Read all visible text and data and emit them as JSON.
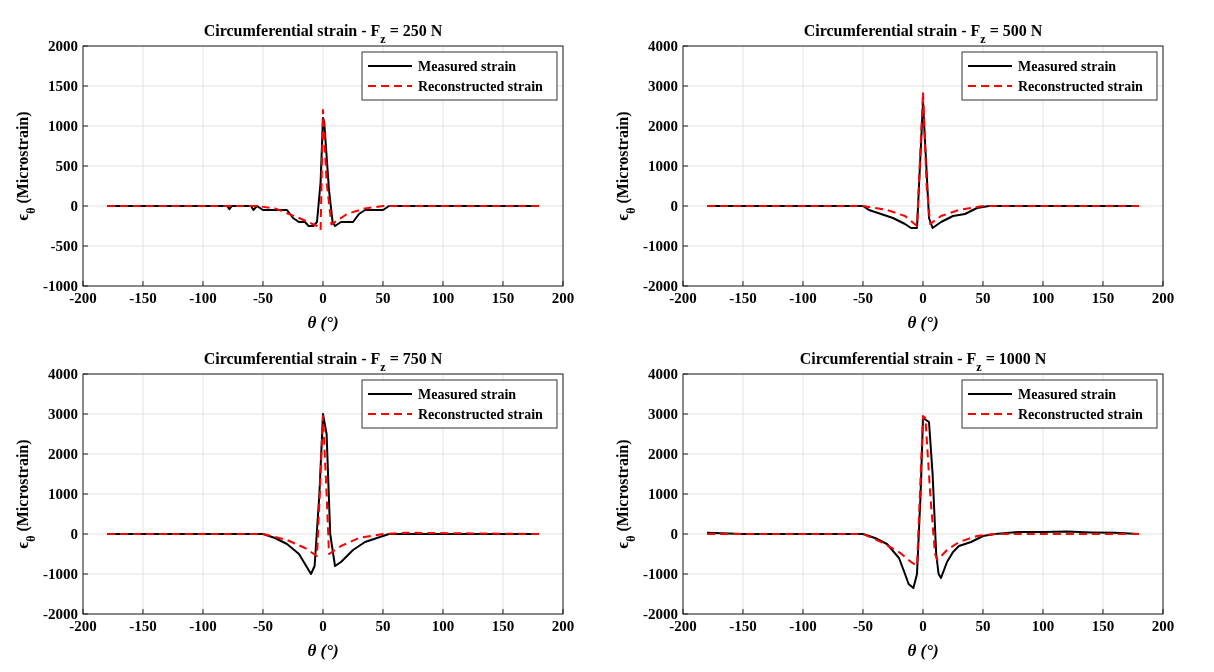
{
  "chart_data": [
    {
      "type": "line",
      "title": "Circumferential strain - F$_{z}$ = 250 N",
      "xlabel": "θ (°)",
      "ylabel": "ϵ$_{θ}$ (Microstrain)",
      "xlim": [
        -200,
        200
      ],
      "xticks": [
        -200,
        -150,
        -100,
        -50,
        0,
        50,
        100,
        150,
        200
      ],
      "ylim": [
        -1000,
        2000
      ],
      "yticks": [
        -1000,
        -500,
        0,
        500,
        1000,
        1500,
        2000
      ],
      "grid": true,
      "legend": "top right",
      "series": [
        {
          "name": "Measured strain",
          "color": "#000000",
          "line_style": "solid",
          "x": [
            -180,
            -80,
            -78,
            -76,
            -60,
            -58,
            -55,
            -50,
            -30,
            -25,
            -20,
            -15,
            -12,
            -8,
            -5,
            -2,
            0,
            1,
            5,
            8,
            10,
            15,
            25,
            30,
            35,
            50,
            55,
            180
          ],
          "values": [
            0,
            0,
            -40,
            0,
            0,
            -50,
            0,
            -50,
            -50,
            -150,
            -200,
            -200,
            -250,
            -250,
            -200,
            300,
            1100,
            1050,
            200,
            -200,
            -250,
            -200,
            -200,
            -100,
            -50,
            -50,
            0,
            0
          ]
        },
        {
          "name": "Reconstructed strain",
          "color": "#ff0000",
          "line_style": "dashed",
          "x": [
            -180,
            -55,
            -40,
            -20,
            -5,
            -2,
            0,
            3,
            7,
            20,
            35,
            50,
            180
          ],
          "values": [
            0,
            0,
            -30,
            -150,
            -250,
            -300,
            1200,
            300,
            -230,
            -100,
            -30,
            0,
            0
          ]
        }
      ]
    },
    {
      "type": "line",
      "title": "Circumferential strain - F$_{z}$ = 500 N",
      "xlabel": "θ (°)",
      "ylabel": "ϵ$_{θ}$ (Microstrain)",
      "xlim": [
        -200,
        200
      ],
      "xticks": [
        -200,
        -150,
        -100,
        -50,
        0,
        50,
        100,
        150,
        200
      ],
      "ylim": [
        -2000,
        4000
      ],
      "yticks": [
        -2000,
        -1000,
        0,
        1000,
        2000,
        3000,
        4000
      ],
      "grid": true,
      "legend": "top right",
      "series": [
        {
          "name": "Measured strain",
          "color": "#000000",
          "line_style": "solid",
          "x": [
            -180,
            -50,
            -45,
            -35,
            -25,
            -15,
            -10,
            -5,
            0,
            5,
            8,
            15,
            25,
            35,
            45,
            55,
            180
          ],
          "values": [
            0,
            0,
            -100,
            -200,
            -300,
            -450,
            -550,
            -550,
            2600,
            -300,
            -550,
            -400,
            -250,
            -200,
            -50,
            0,
            0
          ]
        },
        {
          "name": "Reconstructed strain",
          "color": "#ff0000",
          "line_style": "dashed",
          "x": [
            -180,
            -50,
            -30,
            -15,
            -5,
            0,
            3,
            6,
            15,
            30,
            50,
            180
          ],
          "values": [
            0,
            0,
            -100,
            -250,
            -500,
            2850,
            500,
            -450,
            -250,
            -100,
            0,
            0
          ]
        }
      ]
    },
    {
      "type": "line",
      "title": "Circumferential strain - F$_{z}$ = 750 N",
      "xlabel": "θ (°)",
      "ylabel": "ϵ$_{θ}$ (Microstrain)",
      "xlim": [
        -200,
        200
      ],
      "xticks": [
        -200,
        -150,
        -100,
        -50,
        0,
        50,
        100,
        150,
        200
      ],
      "ylim": [
        -2000,
        4000
      ],
      "yticks": [
        -2000,
        -1000,
        0,
        1000,
        2000,
        3000,
        4000
      ],
      "grid": true,
      "legend": "top right",
      "series": [
        {
          "name": "Measured strain",
          "color": "#000000",
          "line_style": "solid",
          "x": [
            -180,
            -50,
            -40,
            -30,
            -20,
            -12,
            -10,
            -7,
            -3,
            0,
            3,
            6,
            10,
            15,
            25,
            35,
            45,
            55,
            180
          ],
          "values": [
            0,
            0,
            -100,
            -250,
            -500,
            -900,
            -1000,
            -800,
            1000,
            3000,
            2500,
            0,
            -800,
            -700,
            -400,
            -200,
            -100,
            0,
            0
          ]
        },
        {
          "name": "Reconstructed strain",
          "color": "#ff0000",
          "line_style": "dashed",
          "x": [
            -180,
            -50,
            -30,
            -15,
            -5,
            -2,
            0,
            3,
            5,
            15,
            30,
            50,
            70,
            180
          ],
          "values": [
            0,
            0,
            -150,
            -350,
            -550,
            1500,
            2950,
            1000,
            -500,
            -300,
            -100,
            0,
            30,
            0
          ]
        }
      ]
    },
    {
      "type": "line",
      "title": "Circumferential strain - F$_{z}$ = 1000 N",
      "xlabel": "θ (°)",
      "ylabel": "ϵ$_{θ}$ (Microstrain)",
      "xlim": [
        -200,
        200
      ],
      "xticks": [
        -200,
        -150,
        -100,
        -50,
        0,
        50,
        100,
        150,
        200
      ],
      "ylim": [
        -2000,
        4000
      ],
      "yticks": [
        -2000,
        -1000,
        0,
        1000,
        2000,
        3000,
        4000
      ],
      "grid": true,
      "legend": "top right",
      "series": [
        {
          "name": "Measured strain",
          "color": "#000000",
          "line_style": "solid",
          "x": [
            -180,
            -150,
            -50,
            -40,
            -30,
            -20,
            -15,
            -12,
            -8,
            -5,
            -2,
            0,
            5,
            8,
            11,
            13,
            15,
            20,
            25,
            30,
            40,
            50,
            60,
            80,
            100,
            120,
            140,
            160,
            180
          ],
          "values": [
            30,
            0,
            0,
            -100,
            -250,
            -600,
            -1000,
            -1250,
            -1350,
            -1000,
            1000,
            2900,
            2800,
            1500,
            -500,
            -1000,
            -1100,
            -700,
            -450,
            -300,
            -200,
            -50,
            0,
            50,
            50,
            60,
            40,
            30,
            0
          ]
        },
        {
          "name": "Reconstructed strain",
          "color": "#ff0000",
          "line_style": "dashed",
          "x": [
            -180,
            -50,
            -35,
            -20,
            -10,
            -5,
            0,
            2,
            6,
            10,
            12,
            20,
            30,
            45,
            60,
            180
          ],
          "values": [
            0,
            0,
            -200,
            -450,
            -700,
            -800,
            2950,
            2900,
            1000,
            -500,
            -650,
            -400,
            -200,
            -50,
            0,
            0
          ]
        }
      ]
    }
  ]
}
